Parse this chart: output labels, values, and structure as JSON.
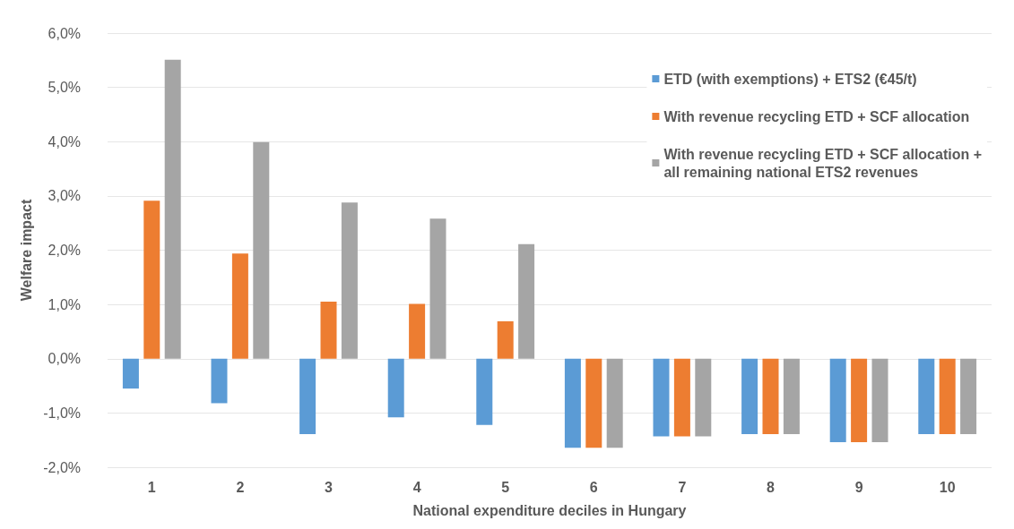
{
  "chart_data": {
    "type": "bar",
    "xlabel": "National expenditure deciles in Hungary",
    "ylabel": "Welfare impact",
    "categories": [
      "1",
      "2",
      "3",
      "4",
      "5",
      "6",
      "7",
      "8",
      "9",
      "10"
    ],
    "series": [
      {
        "name": "ETD (with exemptions) + ETS2 (€45/t)",
        "color": "#5b9bd5",
        "values": [
          -0.55,
          -0.82,
          -1.39,
          -1.08,
          -1.22,
          -1.64,
          -1.43,
          -1.39,
          -1.54,
          -1.39
        ]
      },
      {
        "name": "With revenue recycling ETD + SCF allocation",
        "color": "#ed7d31",
        "values": [
          2.91,
          1.94,
          1.05,
          1.01,
          0.69,
          -1.64,
          -1.43,
          -1.39,
          -1.54,
          -1.39
        ]
      },
      {
        "name": "With revenue recycling ETD + SCF allocation +\nall remaining national ETS2 revenues",
        "color": "#a5a5a5",
        "values": [
          5.51,
          3.99,
          2.88,
          2.58,
          2.11,
          -1.64,
          -1.43,
          -1.39,
          -1.54,
          -1.39
        ]
      }
    ],
    "ylim": [
      -2,
      6
    ],
    "yticks": [
      {
        "value": -2,
        "label": "-2,0%"
      },
      {
        "value": -1,
        "label": "-1,0%"
      },
      {
        "value": 0,
        "label": "0,0%"
      },
      {
        "value": 1,
        "label": "1,0%"
      },
      {
        "value": 2,
        "label": "2,0%"
      },
      {
        "value": 3,
        "label": "3,0%"
      },
      {
        "value": 4,
        "label": "4,0%"
      },
      {
        "value": 5,
        "label": "5,0%"
      },
      {
        "value": 6,
        "label": "6,0%"
      }
    ],
    "grid": "y",
    "legend": "top right"
  }
}
